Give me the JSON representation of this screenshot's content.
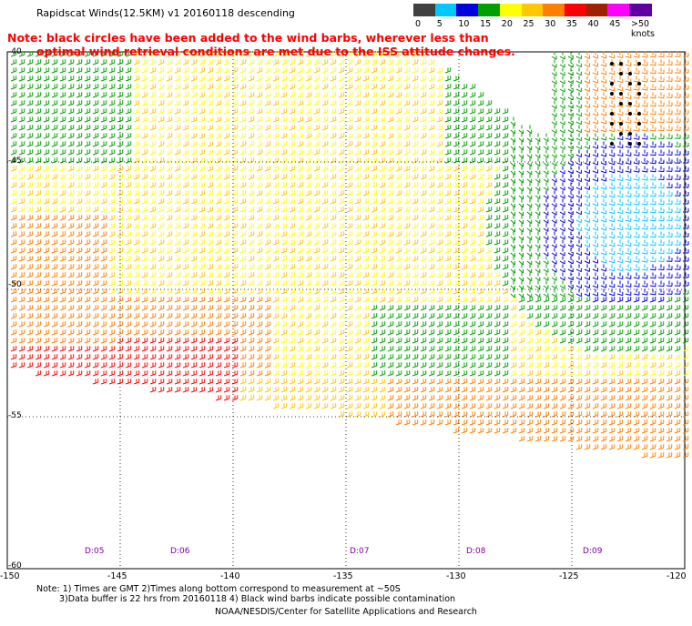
{
  "title": "Rapidscat Winds(12.5KM) v1 20160118 descending",
  "note": {
    "line1": "Note: black circles have been added to the wind barbs, wherever less than",
    "line2": "optimal wind retrieval conditions are met due to the ISS attitude changes."
  },
  "legend": {
    "labels": [
      "0",
      "5",
      "10",
      "15",
      "20",
      "25",
      "30",
      "35",
      "40",
      "45",
      ">50 knots"
    ],
    "colors": [
      "#404040",
      "#00c8ff",
      "#0000e0",
      "#00a000",
      "#ffff00",
      "#ffc800",
      "#ff8000",
      "#ff0000",
      "#a02000",
      "#ff00ff",
      "#6000a0"
    ]
  },
  "lat_labels": [
    "-40",
    "-45",
    "-50",
    "-55",
    "-60"
  ],
  "lon_labels": [
    "-150",
    "-145",
    "-140",
    "-135",
    "-130",
    "-125",
    "-120"
  ],
  "time_labels": [
    "D:05",
    "D:06",
    "D:07",
    "D:08",
    "D:09"
  ],
  "footer": {
    "line1": "Note: 1) Times are GMT 2)Times along bottom correspond to measurement at ~50S",
    "line2": "3)Data buffer is 22 hrs from 20160118 4) Black wind barbs indicate possible contamination",
    "line3": "NOAA/NESDIS/Center for Satellite Applications and Research"
  }
}
